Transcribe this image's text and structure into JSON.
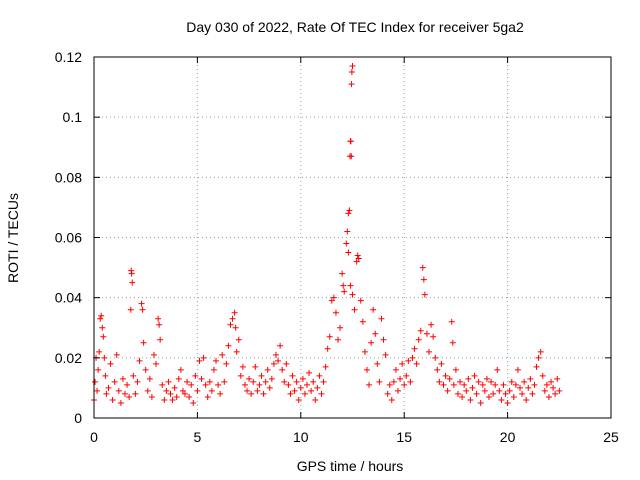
{
  "chart_data": {
    "type": "scatter",
    "title": "Day 030 of 2022, Rate Of TEC Index for receiver 5ga2",
    "xlabel": "GPS time / hours",
    "ylabel": "ROTI / TECUs",
    "xlim": [
      0,
      25
    ],
    "ylim": [
      0,
      0.12
    ],
    "x_ticks": [
      0,
      5,
      10,
      15,
      20,
      25
    ],
    "x_tick_labels": [
      "0",
      "5",
      "10",
      "15",
      "20",
      "25"
    ],
    "y_ticks": [
      0,
      0.02,
      0.04,
      0.06,
      0.08,
      0.1,
      0.12
    ],
    "y_tick_labels": [
      "0",
      "0.02",
      "0.04",
      "0.06",
      "0.08",
      "0.1",
      "0.12"
    ],
    "grid": true,
    "legend": "none",
    "marker": "plus",
    "series_color": "#ff0000",
    "series": [
      {
        "points": [
          [
            0.0,
            0.006
          ],
          [
            0.05,
            0.012
          ],
          [
            0.1,
            0.02
          ],
          [
            0.15,
            0.009
          ],
          [
            0.2,
            0.016
          ],
          [
            0.25,
            0.022
          ],
          [
            0.3,
            0.033
          ],
          [
            0.35,
            0.034
          ],
          [
            0.4,
            0.03
          ],
          [
            0.45,
            0.027
          ],
          [
            0.5,
            0.02
          ],
          [
            0.55,
            0.014
          ],
          [
            0.6,
            0.008
          ],
          [
            0.7,
            0.01
          ],
          [
            0.8,
            0.018
          ],
          [
            0.9,
            0.006
          ],
          [
            1.0,
            0.012
          ],
          [
            1.1,
            0.021
          ],
          [
            1.2,
            0.009
          ],
          [
            1.3,
            0.005
          ],
          [
            1.4,
            0.013
          ],
          [
            1.5,
            0.008
          ],
          [
            1.6,
            0.011
          ],
          [
            1.7,
            0.007
          ],
          [
            1.8,
            0.049
          ],
          [
            1.82,
            0.048
          ],
          [
            1.85,
            0.045
          ],
          [
            1.78,
            0.036
          ],
          [
            1.9,
            0.014
          ],
          [
            2.0,
            0.008
          ],
          [
            2.1,
            0.012
          ],
          [
            2.2,
            0.019
          ],
          [
            2.3,
            0.038
          ],
          [
            2.35,
            0.036
          ],
          [
            2.4,
            0.025
          ],
          [
            2.5,
            0.016
          ],
          [
            2.6,
            0.009
          ],
          [
            2.7,
            0.013
          ],
          [
            2.8,
            0.007
          ],
          [
            2.9,
            0.021
          ],
          [
            3.0,
            0.018
          ],
          [
            3.1,
            0.033
          ],
          [
            3.15,
            0.031
          ],
          [
            3.2,
            0.026
          ],
          [
            3.3,
            0.011
          ],
          [
            3.4,
            0.006
          ],
          [
            3.5,
            0.009
          ],
          [
            3.6,
            0.012
          ],
          [
            3.7,
            0.008
          ],
          [
            3.8,
            0.006
          ],
          [
            3.9,
            0.01
          ],
          [
            4.0,
            0.007
          ],
          [
            4.1,
            0.013
          ],
          [
            4.2,
            0.016
          ],
          [
            4.3,
            0.009
          ],
          [
            4.4,
            0.008
          ],
          [
            4.5,
            0.012
          ],
          [
            4.6,
            0.007
          ],
          [
            4.7,
            0.011
          ],
          [
            4.8,
            0.005
          ],
          [
            4.9,
            0.014
          ],
          [
            5.0,
            0.009
          ],
          [
            5.1,
            0.019
          ],
          [
            5.2,
            0.013
          ],
          [
            5.3,
            0.02
          ],
          [
            5.4,
            0.011
          ],
          [
            5.5,
            0.007
          ],
          [
            5.6,
            0.012
          ],
          [
            5.7,
            0.009
          ],
          [
            5.8,
            0.016
          ],
          [
            5.9,
            0.019
          ],
          [
            6.0,
            0.011
          ],
          [
            6.1,
            0.008
          ],
          [
            6.2,
            0.021
          ],
          [
            6.3,
            0.012
          ],
          [
            6.4,
            0.018
          ],
          [
            6.5,
            0.024
          ],
          [
            6.6,
            0.031
          ],
          [
            6.7,
            0.033
          ],
          [
            6.8,
            0.035
          ],
          [
            6.85,
            0.03
          ],
          [
            6.9,
            0.022
          ],
          [
            7.0,
            0.026
          ],
          [
            7.1,
            0.014
          ],
          [
            7.2,
            0.017
          ],
          [
            7.3,
            0.011
          ],
          [
            7.4,
            0.009
          ],
          [
            7.5,
            0.013
          ],
          [
            7.6,
            0.008
          ],
          [
            7.7,
            0.012
          ],
          [
            7.8,
            0.017
          ],
          [
            7.9,
            0.009
          ],
          [
            8.0,
            0.011
          ],
          [
            8.1,
            0.014
          ],
          [
            8.2,
            0.008
          ],
          [
            8.3,
            0.012
          ],
          [
            8.4,
            0.016
          ],
          [
            8.5,
            0.01
          ],
          [
            8.6,
            0.013
          ],
          [
            8.7,
            0.018
          ],
          [
            8.8,
            0.021
          ],
          [
            8.9,
            0.019
          ],
          [
            9.0,
            0.024
          ],
          [
            9.1,
            0.016
          ],
          [
            9.2,
            0.012
          ],
          [
            9.3,
            0.018
          ],
          [
            9.4,
            0.011
          ],
          [
            9.5,
            0.008
          ],
          [
            9.6,
            0.014
          ],
          [
            9.7,
            0.009
          ],
          [
            9.8,
            0.012
          ],
          [
            9.9,
            0.006
          ],
          [
            10.0,
            0.01
          ],
          [
            10.1,
            0.013
          ],
          [
            10.2,
            0.008
          ],
          [
            10.3,
            0.011
          ],
          [
            10.4,
            0.015
          ],
          [
            10.5,
            0.009
          ],
          [
            10.6,
            0.012
          ],
          [
            10.7,
            0.006
          ],
          [
            10.8,
            0.01
          ],
          [
            10.9,
            0.014
          ],
          [
            11.0,
            0.008
          ],
          [
            11.1,
            0.012
          ],
          [
            11.2,
            0.017
          ],
          [
            11.3,
            0.023
          ],
          [
            11.4,
            0.027
          ],
          [
            11.5,
            0.039
          ],
          [
            11.6,
            0.04
          ],
          [
            11.7,
            0.035
          ],
          [
            11.8,
            0.026
          ],
          [
            11.9,
            0.03
          ],
          [
            12.0,
            0.048
          ],
          [
            12.05,
            0.044
          ],
          [
            12.1,
            0.042
          ],
          [
            12.2,
            0.058
          ],
          [
            12.25,
            0.062
          ],
          [
            12.3,
            0.068
          ],
          [
            12.35,
            0.069
          ],
          [
            12.38,
            0.087
          ],
          [
            12.4,
            0.092
          ],
          [
            12.42,
            0.092
          ],
          [
            12.45,
            0.111
          ],
          [
            12.47,
            0.115
          ],
          [
            12.5,
            0.117
          ],
          [
            12.44,
            0.087
          ],
          [
            12.3,
            0.055
          ],
          [
            12.4,
            0.044
          ],
          [
            12.5,
            0.041
          ],
          [
            12.6,
            0.036
          ],
          [
            12.7,
            0.052
          ],
          [
            12.75,
            0.054
          ],
          [
            12.8,
            0.053
          ],
          [
            12.9,
            0.039
          ],
          [
            13.0,
            0.032
          ],
          [
            13.1,
            0.022
          ],
          [
            13.2,
            0.016
          ],
          [
            13.3,
            0.011
          ],
          [
            13.4,
            0.025
          ],
          [
            13.5,
            0.036
          ],
          [
            13.6,
            0.028
          ],
          [
            13.7,
            0.018
          ],
          [
            13.8,
            0.012
          ],
          [
            13.9,
            0.033
          ],
          [
            14.0,
            0.026
          ],
          [
            14.1,
            0.021
          ],
          [
            14.2,
            0.008
          ],
          [
            14.3,
            0.011
          ],
          [
            14.4,
            0.006
          ],
          [
            14.5,
            0.012
          ],
          [
            14.6,
            0.016
          ],
          [
            14.7,
            0.009
          ],
          [
            14.8,
            0.013
          ],
          [
            14.9,
            0.018
          ],
          [
            15.0,
            0.011
          ],
          [
            15.1,
            0.014
          ],
          [
            15.2,
            0.019
          ],
          [
            15.3,
            0.012
          ],
          [
            15.4,
            0.02
          ],
          [
            15.5,
            0.023
          ],
          [
            15.6,
            0.018
          ],
          [
            15.7,
            0.026
          ],
          [
            15.8,
            0.029
          ],
          [
            15.9,
            0.05
          ],
          [
            15.95,
            0.046
          ],
          [
            16.0,
            0.041
          ],
          [
            16.1,
            0.028
          ],
          [
            16.2,
            0.022
          ],
          [
            16.3,
            0.031
          ],
          [
            16.4,
            0.027
          ],
          [
            16.5,
            0.02
          ],
          [
            16.6,
            0.016
          ],
          [
            16.7,
            0.012
          ],
          [
            16.8,
            0.018
          ],
          [
            16.9,
            0.011
          ],
          [
            17.0,
            0.014
          ],
          [
            17.1,
            0.009
          ],
          [
            17.2,
            0.013
          ],
          [
            17.3,
            0.032
          ],
          [
            17.35,
            0.025
          ],
          [
            17.4,
            0.011
          ],
          [
            17.5,
            0.016
          ],
          [
            17.6,
            0.008
          ],
          [
            17.7,
            0.012
          ],
          [
            17.8,
            0.007
          ],
          [
            17.9,
            0.011
          ],
          [
            18.0,
            0.009
          ],
          [
            18.1,
            0.013
          ],
          [
            18.2,
            0.006
          ],
          [
            18.3,
            0.01
          ],
          [
            18.4,
            0.014
          ],
          [
            18.5,
            0.008
          ],
          [
            18.6,
            0.012
          ],
          [
            18.7,
            0.005
          ],
          [
            18.8,
            0.011
          ],
          [
            18.9,
            0.009
          ],
          [
            19.0,
            0.013
          ],
          [
            19.1,
            0.007
          ],
          [
            19.2,
            0.012
          ],
          [
            19.3,
            0.008
          ],
          [
            19.4,
            0.011
          ],
          [
            19.5,
            0.016
          ],
          [
            19.6,
            0.009
          ],
          [
            19.7,
            0.006
          ],
          [
            19.8,
            0.011
          ],
          [
            19.9,
            0.008
          ],
          [
            20.0,
            0.005
          ],
          [
            20.1,
            0.009
          ],
          [
            20.2,
            0.012
          ],
          [
            20.3,
            0.007
          ],
          [
            20.4,
            0.011
          ],
          [
            20.5,
            0.016
          ],
          [
            20.6,
            0.01
          ],
          [
            20.7,
            0.008
          ],
          [
            20.8,
            0.012
          ],
          [
            20.9,
            0.006
          ],
          [
            21.0,
            0.01
          ],
          [
            21.1,
            0.013
          ],
          [
            21.2,
            0.008
          ],
          [
            21.3,
            0.011
          ],
          [
            21.4,
            0.017
          ],
          [
            21.5,
            0.02
          ],
          [
            21.6,
            0.022
          ],
          [
            21.7,
            0.014
          ],
          [
            21.8,
            0.009
          ],
          [
            21.9,
            0.011
          ],
          [
            22.0,
            0.007
          ],
          [
            22.1,
            0.012
          ],
          [
            22.2,
            0.01
          ],
          [
            22.3,
            0.008
          ],
          [
            22.4,
            0.013
          ],
          [
            22.5,
            0.009
          ]
        ]
      }
    ]
  }
}
